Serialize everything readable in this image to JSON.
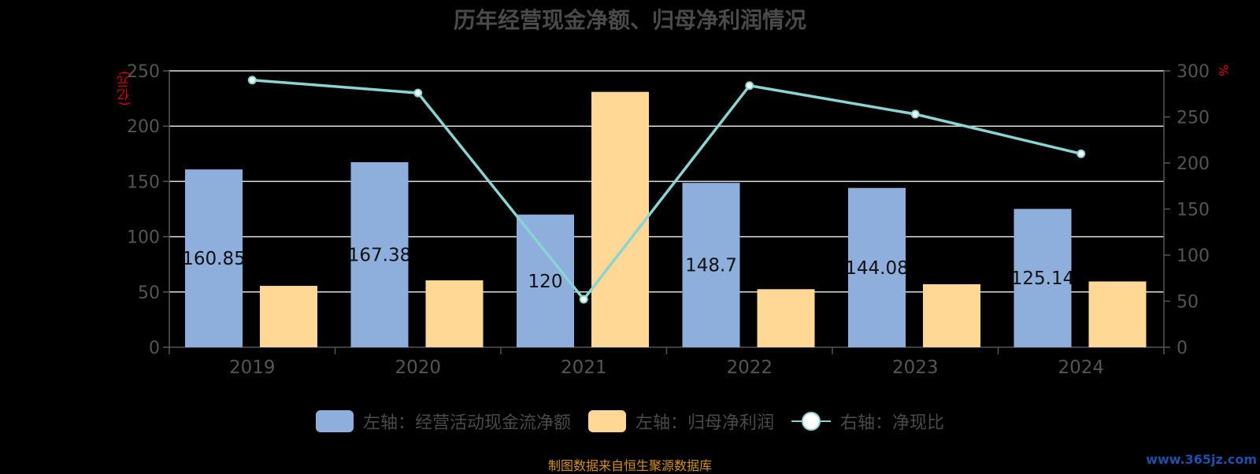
{
  "title": "历年经营现金净额、归母净利润情况",
  "left_unit": "(亿元)",
  "right_unit": "%",
  "colors": {
    "bar1": "#8eaedc",
    "bar2": "#ffd895",
    "line": "#8ad4d4",
    "grid": "#e0e0e0",
    "axis": "#555555",
    "tick_text": "#555555"
  },
  "legend": [
    {
      "label": "左轴：经营活动现金流净额",
      "kind": "bar",
      "color": "#8eaedc"
    },
    {
      "label": "左轴：归母净利润",
      "kind": "bar",
      "color": "#ffd895"
    },
    {
      "label": "右轴：净现比",
      "kind": "line",
      "color": "#8ad4d4"
    }
  ],
  "footer": "制图数据来自恒生聚源数据库",
  "watermark": "www.365jz.com",
  "chart_data": {
    "type": "bar",
    "categories": [
      "2019",
      "2020",
      "2021",
      "2022",
      "2023",
      "2024"
    ],
    "series": [
      {
        "name": "左轴：经营活动现金流净额",
        "axis": "left",
        "type": "bar",
        "values": [
          160.85,
          167.38,
          120,
          148.7,
          144.08,
          125.14
        ],
        "labels": [
          "160.85",
          "167.38",
          "120",
          "148.7",
          "144.08",
          "125.14"
        ]
      },
      {
        "name": "左轴：归母净利润",
        "axis": "left",
        "type": "bar",
        "values": [
          55.5,
          60.5,
          231,
          52.5,
          57,
          59.5
        ]
      },
      {
        "name": "右轴：净现比",
        "axis": "right",
        "type": "line",
        "values": [
          290,
          276,
          52,
          284,
          253,
          210
        ]
      }
    ],
    "ylim_left": [
      0,
      250
    ],
    "yticks_left": [
      "0",
      "50",
      "100",
      "150",
      "200",
      "250"
    ],
    "ylim_right": [
      0,
      300
    ],
    "yticks_right": [
      "0",
      "50",
      "100",
      "150",
      "200",
      "250",
      "300"
    ],
    "grid": true,
    "legend_position": "bottom"
  }
}
